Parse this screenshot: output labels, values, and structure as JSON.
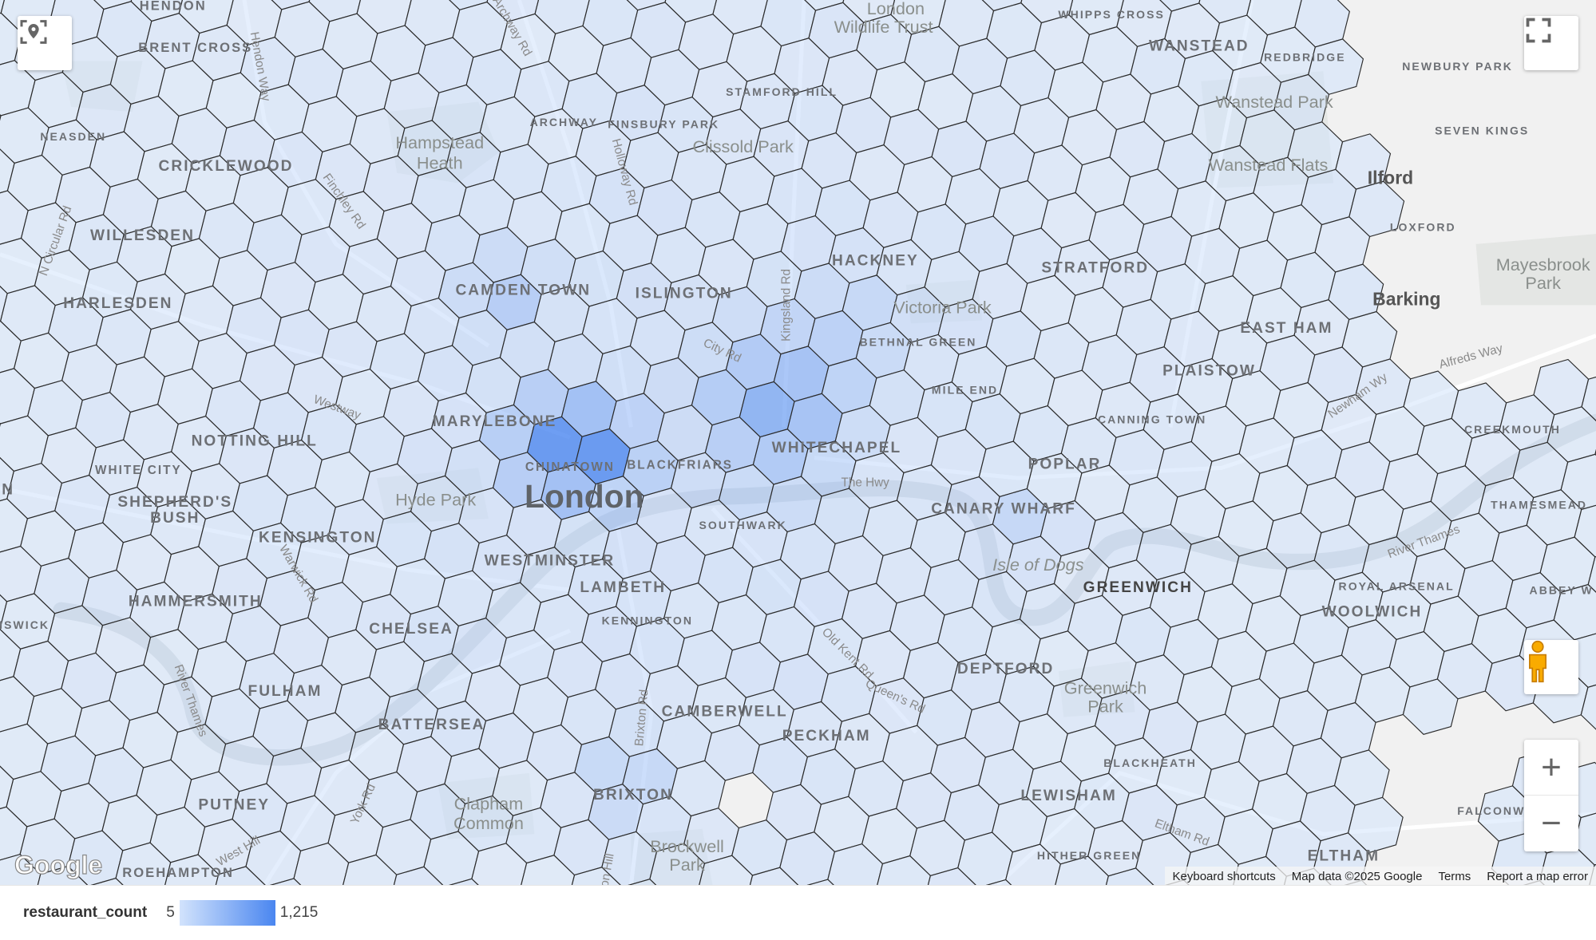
{
  "map": {
    "labels": {
      "hendon": "HENDON",
      "brent_cross": "BRENT CROSS",
      "neasden": "NEASDEN",
      "cricklewood": "CRICKLEWOOD",
      "willesden": "WILLESDEN",
      "harlesden": "HARLESDEN",
      "notting_hill": "NOTTING HILL",
      "white_city": "WHITE CITY",
      "shepherds_bush_1": "SHEPHERD'S",
      "shepherds_bush_2": "BUSH",
      "kensington": "KENSINGTON",
      "hammersmith": "HAMMERSMITH",
      "chelsea": "CHELSEA",
      "fulham": "FULHAM",
      "battersea": "BATTERSEA",
      "putney": "PUTNEY",
      "roehampton": "ROEHAMPTON",
      "chiswick": "ISWICK",
      "acton": "N",
      "hampstead_1": "Hampstead",
      "hampstead_2": "Heath",
      "archway": "ARCHWAY",
      "finsbury_park": "FINSBURY PARK",
      "stamford_hill": "STAMFORD HILL",
      "clissold_park": "Clissold Park",
      "camden_town": "CAMDEN TOWN",
      "islington": "ISLINGTON",
      "hackney": "HACKNEY",
      "victoria_park": "Victoria Park",
      "bethnal_green": "BETHNAL GREEN",
      "mile_end": "MILE END",
      "marylebone": "MARYLEBONE",
      "chinatown": "CHINATOWN",
      "blackfriars": "BLACKFRIARS",
      "london": "London",
      "hyde_park": "Hyde Park",
      "whitechapel": "WHITECHAPEL",
      "the_hwy": "The Hwy",
      "southwark": "SOUTHWARK",
      "westminster": "WESTMINSTER",
      "lambeth": "LAMBETH",
      "kennington": "KENNINGTON",
      "camberwell": "CAMBERWELL",
      "peckham": "PECKHAM",
      "brixton": "BRIXTON",
      "clapham_1": "Clapham",
      "clapham_2": "Common",
      "brockwell_1": "Brockwell",
      "brockwell_2": "Park",
      "stratford": "STRATFORD",
      "canning_town": "CANNING TOWN",
      "poplar": "POPLAR",
      "canary_wharf": "CANARY WHARF",
      "isle_of_dogs": "Isle of Dogs",
      "greenwich": "GREENWICH",
      "deptford": "DEPTFORD",
      "greenwich_park_1": "Greenwich",
      "greenwich_park_2": "Park",
      "blackheath": "BLACKHEATH",
      "lewisham": "LEWISHAM",
      "hither_green": "HITHER GREEN",
      "eltham": "ELTHAM",
      "plaistow": "PLAISTOW",
      "east_ham": "EAST HAM",
      "barking": "Barking",
      "ilford": "Ilford",
      "loxford": "LOXFORD",
      "seven_kings": "SEVEN KINGS",
      "newbury_park": "NEWBURY PARK",
      "redbridge": "REDBRIDGE",
      "wanstead": "WANSTEAD",
      "wanstead_park": "Wanstead Park",
      "wanstead_flats": "Wanstead Flats",
      "whipps_cross": "WHIPPS CROSS",
      "mayesbrook_1": "Mayesbrook",
      "mayesbrook_2": "Park",
      "creekmouth": "CREEKMOUTH",
      "thamesmead": "THAMESMEAD",
      "royal_arsenal": "ROYAL ARSENAL",
      "woolwich": "WOOLWICH",
      "abbey_wood": "ABBEY W",
      "falconwood": "FALCONWOOD",
      "wildlife_1": "London",
      "wildlife_2": "Wildlife Trust",
      "west_edge": "W"
    },
    "roads": {
      "hendon_way": "Hendon Way",
      "archway_rd": "Archway Rd",
      "holloway_rd": "Holloway Rd",
      "finchley_rd": "Finchley Rd",
      "kingsland_rd": "Kingsland Rd",
      "city_rd": "City Rd",
      "westway": "Westway",
      "warwick_rd": "Warwick Rd",
      "old_kent_rd": "Old Kent Rd",
      "queens_rd": "Queen's Rd",
      "brixton_rd": "Brixton Rd",
      "brixton_hill": "Brixton Hill",
      "york_rd": "York Rd",
      "west_hill": "West Hill",
      "alfreds_way": "Alfreds Way",
      "newham_way": "Newham Wy",
      "river_thames_w": "River Thames",
      "river_thames_e": "River Thames",
      "eltham_rd": "Eltham Rd",
      "n_circular": "N Circular Rd"
    },
    "colors": {
      "low": "#d2e3fc",
      "high": "#4a86f0",
      "water": "#cfd3d6",
      "land": "#f1f1f1",
      "hex_stroke": "#2b2b2b"
    }
  },
  "controls": {
    "locate_icon": "my-location-icon",
    "fullscreen_icon": "fullscreen-icon",
    "pegman_icon": "street-view-pegman-icon",
    "zoom_in": "+",
    "zoom_out": "−"
  },
  "google_logo": "Google",
  "attribution": {
    "keyboard_shortcuts": "Keyboard shortcuts",
    "map_data": "Map data ©2025 Google",
    "terms": "Terms",
    "report": "Report a map error"
  },
  "legend": {
    "field": "restaurant_count",
    "min": "5",
    "max": "1,215",
    "min_value": 5,
    "max_value": 1215
  }
}
